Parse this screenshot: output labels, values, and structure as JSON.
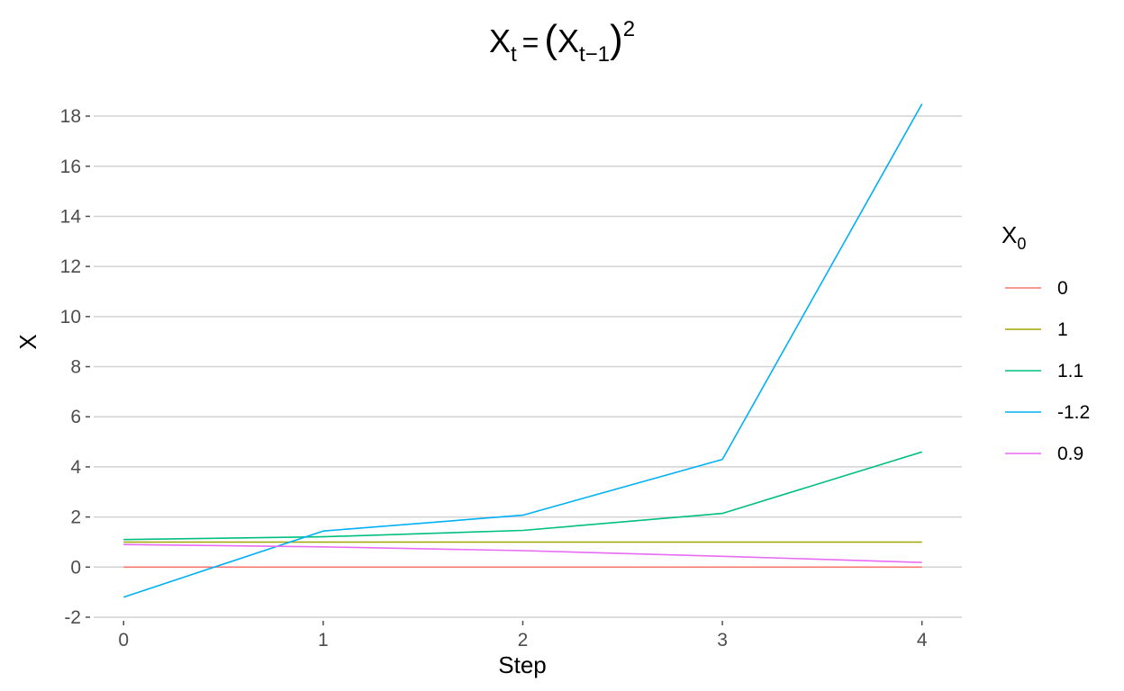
{
  "chart_data": {
    "type": "line",
    "title": {
      "base": "X",
      "sub": "t",
      "equals": "=",
      "paren_open": "(",
      "inner_base": "X",
      "inner_sub": "t−1",
      "paren_close": ")",
      "sup": "2"
    },
    "xlabel": "Step",
    "ylabel": "X",
    "x": [
      0,
      1,
      2,
      3,
      4
    ],
    "xticks": [
      "0",
      "1",
      "2",
      "3",
      "4"
    ],
    "yticks": [
      "-2",
      "0",
      "2",
      "4",
      "6",
      "8",
      "10",
      "12",
      "14",
      "16",
      "18"
    ],
    "xlim": [
      -0.15,
      4.2
    ],
    "ylim": [
      -2.0,
      18.9
    ],
    "grid": "horizontal",
    "legend": {
      "title_base": "X",
      "title_sub": "0",
      "position": "right"
    },
    "series": [
      {
        "name": "0",
        "color": "#F8766D",
        "values": [
          0,
          0,
          0,
          0,
          0
        ]
      },
      {
        "name": "1",
        "color": "#A3A500",
        "values": [
          1,
          1,
          1,
          1,
          1
        ]
      },
      {
        "name": "1.1",
        "color": "#00BF7D",
        "values": [
          1.1,
          1.21,
          1.4641,
          2.1436,
          4.595
        ]
      },
      {
        "name": "-1.2",
        "color": "#00B0F6",
        "values": [
          -1.2,
          1.44,
          2.0736,
          4.2998,
          18.488
        ]
      },
      {
        "name": "0.9",
        "color": "#E76BF3",
        "values": [
          0.9,
          0.81,
          0.6561,
          0.4305,
          0.1853
        ]
      }
    ]
  }
}
